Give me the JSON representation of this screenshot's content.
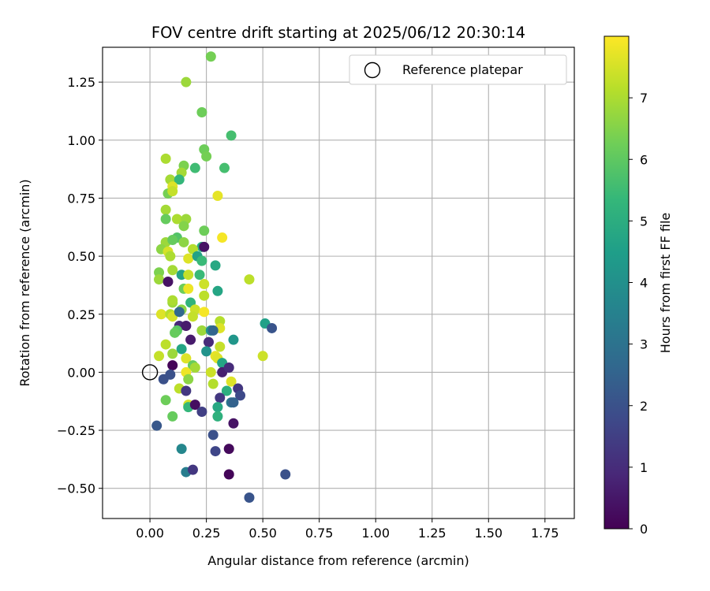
{
  "chart_data": {
    "type": "scatter",
    "title": "FOV centre drift starting at 2025/06/12 20:30:14",
    "xlabel": "Angular distance from reference (arcmin)",
    "ylabel": "Rotation from reference (arcmin)",
    "xlim": [
      -0.21,
      1.88
    ],
    "ylim": [
      -0.63,
      1.4
    ],
    "xticks": [
      0.0,
      0.25,
      0.5,
      0.75,
      1.0,
      1.25,
      1.5,
      1.75
    ],
    "xtick_labels": [
      "0.00",
      "0.25",
      "0.50",
      "0.75",
      "1.00",
      "1.25",
      "1.50",
      "1.75"
    ],
    "yticks": [
      -0.5,
      -0.25,
      0.0,
      0.25,
      0.5,
      0.75,
      1.0,
      1.25
    ],
    "ytick_labels": [
      "−0.50",
      "−0.25",
      "0.00",
      "0.25",
      "0.50",
      "0.75",
      "1.00",
      "1.25"
    ],
    "grid": true,
    "legend": {
      "entries": [
        "Reference platepar"
      ],
      "placement": "top-right"
    },
    "reference_point": {
      "x": 0.0,
      "y": 0.0,
      "label": "Reference platepar"
    },
    "colorbar": {
      "label": "Hours from first FF file",
      "colormap": "viridis",
      "range": [
        0,
        8
      ],
      "ticks": [
        0,
        1,
        2,
        3,
        4,
        5,
        6,
        7
      ],
      "tick_labels": [
        "0",
        "1",
        "2",
        "3",
        "4",
        "5",
        "6",
        "7"
      ]
    },
    "points": [
      {
        "x": 0.27,
        "y": 1.36,
        "h": 6.3
      },
      {
        "x": 0.16,
        "y": 1.25,
        "h": 6.8
      },
      {
        "x": 0.23,
        "y": 1.12,
        "h": 6.2
      },
      {
        "x": 0.36,
        "y": 1.02,
        "h": 5.6
      },
      {
        "x": 0.24,
        "y": 0.96,
        "h": 6.2
      },
      {
        "x": 0.25,
        "y": 0.93,
        "h": 6.3
      },
      {
        "x": 0.07,
        "y": 0.92,
        "h": 7.0
      },
      {
        "x": 0.15,
        "y": 0.89,
        "h": 6.4
      },
      {
        "x": 0.33,
        "y": 0.88,
        "h": 5.6
      },
      {
        "x": 0.2,
        "y": 0.88,
        "h": 5.5
      },
      {
        "x": 0.14,
        "y": 0.86,
        "h": 6.9
      },
      {
        "x": 0.09,
        "y": 0.83,
        "h": 6.9
      },
      {
        "x": 0.13,
        "y": 0.83,
        "h": 5.3
      },
      {
        "x": 0.1,
        "y": 0.8,
        "h": 7.6
      },
      {
        "x": 0.08,
        "y": 0.77,
        "h": 6.3
      },
      {
        "x": 0.1,
        "y": 0.78,
        "h": 7.3
      },
      {
        "x": 0.3,
        "y": 0.76,
        "h": 7.7
      },
      {
        "x": 0.07,
        "y": 0.7,
        "h": 6.9
      },
      {
        "x": 0.07,
        "y": 0.66,
        "h": 6.1
      },
      {
        "x": 0.12,
        "y": 0.66,
        "h": 7.0
      },
      {
        "x": 0.16,
        "y": 0.66,
        "h": 6.8
      },
      {
        "x": 0.15,
        "y": 0.63,
        "h": 6.5
      },
      {
        "x": 0.24,
        "y": 0.61,
        "h": 6.2
      },
      {
        "x": 0.12,
        "y": 0.58,
        "h": 5.8
      },
      {
        "x": 0.32,
        "y": 0.58,
        "h": 7.9
      },
      {
        "x": 0.07,
        "y": 0.56,
        "h": 6.8
      },
      {
        "x": 0.1,
        "y": 0.57,
        "h": 6.1
      },
      {
        "x": 0.15,
        "y": 0.56,
        "h": 6.6
      },
      {
        "x": 0.23,
        "y": 0.54,
        "h": 5.0
      },
      {
        "x": 0.24,
        "y": 0.54,
        "h": 0.4
      },
      {
        "x": 0.05,
        "y": 0.53,
        "h": 6.6
      },
      {
        "x": 0.08,
        "y": 0.52,
        "h": 7.5
      },
      {
        "x": 0.09,
        "y": 0.5,
        "h": 7.0
      },
      {
        "x": 0.19,
        "y": 0.53,
        "h": 7.1
      },
      {
        "x": 0.17,
        "y": 0.49,
        "h": 7.6
      },
      {
        "x": 0.21,
        "y": 0.5,
        "h": 4.6
      },
      {
        "x": 0.23,
        "y": 0.48,
        "h": 5.4
      },
      {
        "x": 0.29,
        "y": 0.46,
        "h": 4.8
      },
      {
        "x": 0.04,
        "y": 0.43,
        "h": 6.4
      },
      {
        "x": 0.1,
        "y": 0.44,
        "h": 6.9
      },
      {
        "x": 0.14,
        "y": 0.42,
        "h": 4.6
      },
      {
        "x": 0.17,
        "y": 0.42,
        "h": 7.3
      },
      {
        "x": 0.04,
        "y": 0.4,
        "h": 6.8
      },
      {
        "x": 0.08,
        "y": 0.39,
        "h": 0.4
      },
      {
        "x": 0.22,
        "y": 0.42,
        "h": 5.4
      },
      {
        "x": 0.44,
        "y": 0.4,
        "h": 7.2
      },
      {
        "x": 0.24,
        "y": 0.38,
        "h": 7.4
      },
      {
        "x": 0.15,
        "y": 0.36,
        "h": 6.2
      },
      {
        "x": 0.17,
        "y": 0.36,
        "h": 7.8
      },
      {
        "x": 0.3,
        "y": 0.35,
        "h": 4.7
      },
      {
        "x": 0.1,
        "y": 0.3,
        "h": 6.8
      },
      {
        "x": 0.1,
        "y": 0.31,
        "h": 7.0
      },
      {
        "x": 0.18,
        "y": 0.3,
        "h": 5.2
      },
      {
        "x": 0.24,
        "y": 0.33,
        "h": 7.2
      },
      {
        "x": 0.14,
        "y": 0.27,
        "h": 6.6
      },
      {
        "x": 0.2,
        "y": 0.27,
        "h": 7.4
      },
      {
        "x": 0.05,
        "y": 0.25,
        "h": 7.6
      },
      {
        "x": 0.09,
        "y": 0.25,
        "h": 7.1
      },
      {
        "x": 0.1,
        "y": 0.24,
        "h": 7.5
      },
      {
        "x": 0.19,
        "y": 0.24,
        "h": 7.3
      },
      {
        "x": 0.24,
        "y": 0.26,
        "h": 7.9
      },
      {
        "x": 0.13,
        "y": 0.26,
        "h": 2.7
      },
      {
        "x": 0.31,
        "y": 0.22,
        "h": 7.1
      },
      {
        "x": 0.51,
        "y": 0.21,
        "h": 4.5
      },
      {
        "x": 0.54,
        "y": 0.19,
        "h": 2.1
      },
      {
        "x": 0.13,
        "y": 0.2,
        "h": 0.9
      },
      {
        "x": 0.16,
        "y": 0.2,
        "h": 0.6
      },
      {
        "x": 0.12,
        "y": 0.18,
        "h": 5.9
      },
      {
        "x": 0.11,
        "y": 0.17,
        "h": 6.1
      },
      {
        "x": 0.23,
        "y": 0.18,
        "h": 6.8
      },
      {
        "x": 0.27,
        "y": 0.18,
        "h": 4.0
      },
      {
        "x": 0.31,
        "y": 0.19,
        "h": 7.6
      },
      {
        "x": 0.28,
        "y": 0.18,
        "h": 2.6
      },
      {
        "x": 0.07,
        "y": 0.12,
        "h": 7.2
      },
      {
        "x": 0.18,
        "y": 0.14,
        "h": 0.6
      },
      {
        "x": 0.26,
        "y": 0.13,
        "h": 1.0
      },
      {
        "x": 0.37,
        "y": 0.14,
        "h": 4.2
      },
      {
        "x": 0.14,
        "y": 0.1,
        "h": 4.7
      },
      {
        "x": 0.31,
        "y": 0.11,
        "h": 7.3
      },
      {
        "x": 0.04,
        "y": 0.07,
        "h": 7.3
      },
      {
        "x": 0.1,
        "y": 0.08,
        "h": 6.8
      },
      {
        "x": 0.16,
        "y": 0.06,
        "h": 7.6
      },
      {
        "x": 0.25,
        "y": 0.09,
        "h": 4.1
      },
      {
        "x": 0.29,
        "y": 0.07,
        "h": 7.7
      },
      {
        "x": 0.3,
        "y": 0.06,
        "h": 7.6
      },
      {
        "x": 0.32,
        "y": 0.04,
        "h": 4.7
      },
      {
        "x": 0.5,
        "y": 0.07,
        "h": 7.4
      },
      {
        "x": 0.1,
        "y": 0.03,
        "h": 0.1
      },
      {
        "x": 0.19,
        "y": 0.03,
        "h": 6.1
      },
      {
        "x": 0.2,
        "y": 0.02,
        "h": 6.9
      },
      {
        "x": 0.27,
        "y": 0.0,
        "h": 7.4
      },
      {
        "x": 0.32,
        "y": 0.0,
        "h": 0.7
      },
      {
        "x": 0.35,
        "y": 0.02,
        "h": 1.0
      },
      {
        "x": 0.16,
        "y": 0.0,
        "h": 7.8
      },
      {
        "x": 0.06,
        "y": -0.03,
        "h": 2.0
      },
      {
        "x": 0.09,
        "y": -0.01,
        "h": 2.0
      },
      {
        "x": 0.17,
        "y": -0.03,
        "h": 6.6
      },
      {
        "x": 0.28,
        "y": -0.05,
        "h": 7.1
      },
      {
        "x": 0.36,
        "y": -0.04,
        "h": 7.6
      },
      {
        "x": 0.13,
        "y": -0.07,
        "h": 7.2
      },
      {
        "x": 0.16,
        "y": -0.08,
        "h": 1.3
      },
      {
        "x": 0.34,
        "y": -0.08,
        "h": 5.0
      },
      {
        "x": 0.39,
        "y": -0.07,
        "h": 1.3
      },
      {
        "x": 0.07,
        "y": -0.12,
        "h": 6.2
      },
      {
        "x": 0.31,
        "y": -0.11,
        "h": 1.3
      },
      {
        "x": 0.36,
        "y": -0.13,
        "h": 3.1
      },
      {
        "x": 0.4,
        "y": -0.1,
        "h": 1.8
      },
      {
        "x": 0.17,
        "y": -0.14,
        "h": 7.5
      },
      {
        "x": 0.17,
        "y": -0.15,
        "h": 5.3
      },
      {
        "x": 0.2,
        "y": -0.14,
        "h": 0.3
      },
      {
        "x": 0.3,
        "y": -0.15,
        "h": 4.8
      },
      {
        "x": 0.37,
        "y": -0.13,
        "h": 2.5
      },
      {
        "x": 0.1,
        "y": -0.19,
        "h": 6.1
      },
      {
        "x": 0.23,
        "y": -0.17,
        "h": 1.5
      },
      {
        "x": 0.3,
        "y": -0.19,
        "h": 5.1
      },
      {
        "x": 0.37,
        "y": -0.22,
        "h": 0.4
      },
      {
        "x": 0.03,
        "y": -0.23,
        "h": 2.2
      },
      {
        "x": 0.28,
        "y": -0.27,
        "h": 2.0
      },
      {
        "x": 0.14,
        "y": -0.33,
        "h": 3.7
      },
      {
        "x": 0.29,
        "y": -0.34,
        "h": 1.7
      },
      {
        "x": 0.35,
        "y": -0.33,
        "h": 0.2
      },
      {
        "x": 0.16,
        "y": -0.43,
        "h": 3.4
      },
      {
        "x": 0.19,
        "y": -0.42,
        "h": 1.3
      },
      {
        "x": 0.35,
        "y": -0.44,
        "h": 0.1
      },
      {
        "x": 0.6,
        "y": -0.44,
        "h": 2.0
      },
      {
        "x": 0.44,
        "y": -0.54,
        "h": 2.1
      }
    ]
  }
}
